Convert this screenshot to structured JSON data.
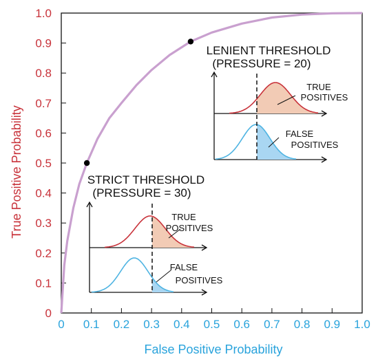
{
  "chart_data": {
    "type": "line",
    "title": "",
    "xlabel": "False Positive Probability",
    "ylabel": "True Positive Probability",
    "xlim": [
      0,
      1
    ],
    "ylim": [
      0,
      1
    ],
    "x_ticks": [
      "0",
      "0.1",
      "0.2",
      "0.3",
      "0.4",
      "0.5",
      "0.6",
      "0.7",
      "0.8",
      "0.9",
      "1.0"
    ],
    "y_ticks": [
      "0",
      "0.1",
      "0.2",
      "0.3",
      "0.4",
      "0.5",
      "0.6",
      "0.7",
      "0.8",
      "0.9",
      "1.0"
    ],
    "grid": false,
    "series": [
      {
        "x": [
          0,
          0.01,
          0.02,
          0.04,
          0.06,
          0.085,
          0.12,
          0.16,
          0.2,
          0.25,
          0.3,
          0.36,
          0.43,
          0.5,
          0.6,
          0.7,
          0.8,
          0.9,
          1.0
        ],
        "y": [
          0,
          0.16,
          0.24,
          0.35,
          0.43,
          0.5,
          0.58,
          0.65,
          0.7,
          0.76,
          0.81,
          0.86,
          0.905,
          0.935,
          0.965,
          0.985,
          0.995,
          0.999,
          1.0
        ]
      }
    ],
    "points": [
      {
        "x": 0.085,
        "y": 0.5
      },
      {
        "x": 0.43,
        "y": 0.905
      }
    ],
    "annotations": {
      "lenient": {
        "line1": "LENIENT THRESHOLD",
        "line2": "(PRESSURE = 20)",
        "true_pos": [
          "TRUE",
          "POSITIVES"
        ],
        "false_pos": [
          "FALSE",
          "POSITIVES"
        ]
      },
      "strict": {
        "line1": "STRICT THRESHOLD",
        "line2": "(PRESSURE = 30)",
        "true_pos": [
          "TRUE",
          "POSITIVES"
        ],
        "false_pos": [
          "FALSE",
          "POSITIVES"
        ]
      }
    },
    "colors": {
      "curve": "#c9a0cf",
      "y_text": "#c8323a",
      "x_text": "#29a3dc",
      "true_curve": "#c8323a",
      "true_fill": "#f2cbb5",
      "false_curve": "#4fb4e2",
      "false_fill": "#a9d6f2"
    }
  }
}
